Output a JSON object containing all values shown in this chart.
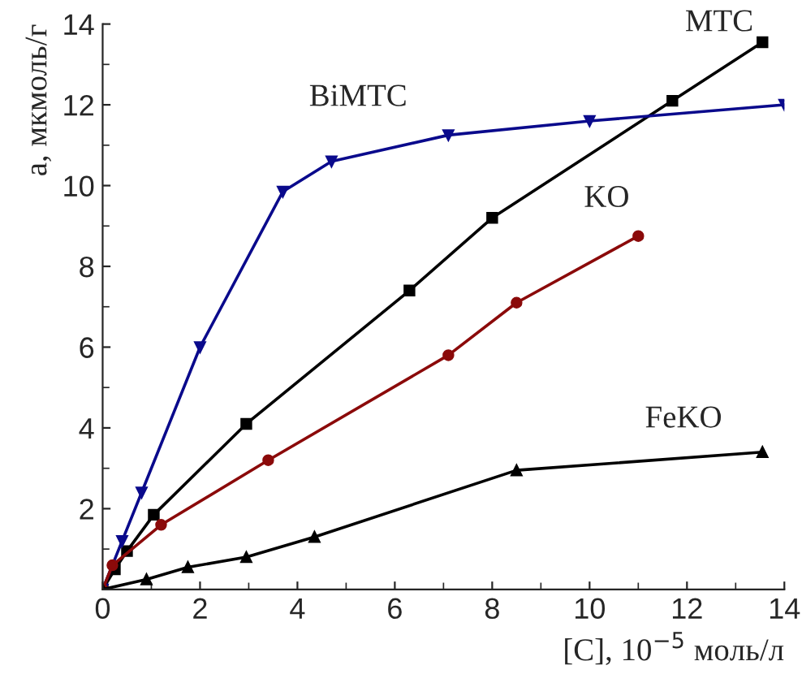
{
  "chart_data": {
    "type": "line",
    "xlabel": "[C], 10$^{−5}$ моль/л",
    "ylabel": "a, мкмоль/г",
    "xlim": [
      0,
      14
    ],
    "ylim": [
      0,
      14
    ],
    "xticks": [
      0,
      2,
      4,
      6,
      8,
      10,
      12,
      14
    ],
    "yticks": [
      {
        "value": 0,
        "label": null
      },
      2,
      4,
      6,
      8,
      10,
      12,
      14
    ],
    "grid": false,
    "legend": false,
    "series": [
      {
        "name": "MTC",
        "color": "#000000",
        "marker": "square",
        "x": [
          0,
          0.25,
          0.5,
          1.05,
          2.95,
          6.3,
          8,
          11.7,
          13.55
        ],
        "values": [
          0,
          0.5,
          0.95,
          1.85,
          4.1,
          7.4,
          9.2,
          12.1,
          13.55
        ]
      },
      {
        "name": "BiMTC",
        "color": "#0a0a8c",
        "marker": "triangle_down",
        "x": [
          0,
          0.4,
          0.8,
          2,
          3.7,
          4.7,
          7.1,
          10,
          14
        ],
        "values": [
          0,
          1.2,
          2.4,
          6,
          9.85,
          10.6,
          11.25,
          11.6,
          12
        ]
      },
      {
        "name": "KO",
        "color": "#8b0a0a",
        "marker": "circle",
        "x": [
          0,
          0.2,
          1.2,
          3.4,
          7.1,
          8.5,
          11
        ],
        "values": [
          0,
          0.6,
          1.6,
          3.2,
          5.8,
          7.1,
          8.75
        ]
      },
      {
        "name": "FeKO",
        "color": "#000000",
        "marker": "triangle",
        "x": [
          0,
          0.9,
          1.75,
          2.95,
          4.35,
          8.5,
          13.55
        ],
        "values": [
          0,
          0.25,
          0.55,
          0.8,
          1.3,
          2.95,
          3.4
        ]
      }
    ]
  }
}
